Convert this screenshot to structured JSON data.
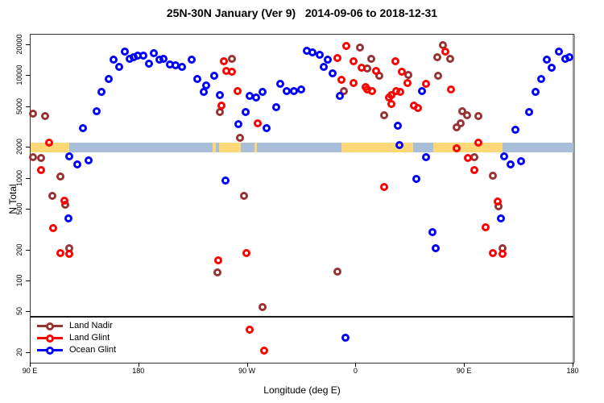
{
  "title": "25N-30N January (Ver 9)   2014-09-06 to 2018-12-31",
  "chart_data": {
    "type": "scatter",
    "title": "25N-30N January (Ver 9)   2014-09-06 to 2018-12-31",
    "xlabel": "Longitude (deg E)",
    "ylabel": "N Total",
    "x_axis": {
      "min": 90,
      "max": 540,
      "ticks": [
        {
          "value": 90,
          "label": "90 E"
        },
        {
          "value": 180,
          "label": "180"
        },
        {
          "value": 270,
          "label": "90 W"
        },
        {
          "value": 360,
          "label": "0"
        },
        {
          "value": 450,
          "label": "90 E"
        },
        {
          "value": 540,
          "label": "180"
        }
      ]
    },
    "y_axis": {
      "scale": "log",
      "min": 20,
      "max": 20000,
      "ticks": [
        20,
        50,
        100,
        200,
        500,
        1000,
        2000,
        5000,
        10000,
        20000
      ],
      "tick_labels": [
        "20",
        "50",
        "100",
        "200",
        "500",
        "1000",
        "2000",
        "5000",
        "10000",
        "20000"
      ]
    },
    "reference_line_n": 46,
    "land_ocean_band": {
      "center_n": 2000,
      "land_color": "#FFD878",
      "ocean_color": "#A9BED8",
      "segments": [
        {
          "surface": "land",
          "from": 90,
          "to": 122
        },
        {
          "surface": "ocean",
          "from": 122,
          "to": 241
        },
        {
          "surface": "land",
          "from": 241,
          "to": 243.5
        },
        {
          "surface": "ocean",
          "from": 243.5,
          "to": 246.5
        },
        {
          "surface": "land",
          "from": 246.5,
          "to": 264
        },
        {
          "surface": "ocean",
          "from": 264,
          "to": 275.5
        },
        {
          "surface": "land",
          "from": 275.5,
          "to": 277.5
        },
        {
          "surface": "ocean",
          "from": 277.5,
          "to": 347.5
        },
        {
          "surface": "land",
          "from": 347.5,
          "to": 407
        },
        {
          "surface": "ocean",
          "from": 407,
          "to": 424
        },
        {
          "surface": "land",
          "from": 424,
          "to": 481
        },
        {
          "surface": "ocean",
          "from": 481,
          "to": 540
        }
      ]
    },
    "legend": {
      "items": [
        {
          "label": "Land Nadir",
          "color": "#993333"
        },
        {
          "label": "Land Glint",
          "color": "#FF0000"
        },
        {
          "label": "Ocean Glint",
          "color": "#0000FF"
        }
      ]
    },
    "series": [
      {
        "name": "Land Nadir",
        "color": "#993333",
        "points": [
          [
            92,
            4310
          ],
          [
            102,
            4070
          ],
          [
            92,
            1620
          ],
          [
            98.7,
            1590
          ],
          [
            114.7,
            1050
          ],
          [
            108,
            680
          ],
          [
            118.7,
            557
          ],
          [
            122.1,
            210
          ],
          [
            247.1,
            4460
          ],
          [
            257.2,
            14730
          ],
          [
            263.9,
            2500
          ],
          [
            267.2,
            680
          ],
          [
            245.1,
            122
          ],
          [
            282.6,
            56
          ],
          [
            344.1,
            124
          ],
          [
            362.8,
            18980
          ],
          [
            372.2,
            14730
          ],
          [
            368.8,
            11820
          ],
          [
            349.4,
            7140
          ],
          [
            378.9,
            10070
          ],
          [
            382.9,
            4160
          ],
          [
            402.9,
            10260
          ],
          [
            431.7,
            19900
          ],
          [
            427,
            15280
          ],
          [
            437.7,
            14730
          ],
          [
            427.7,
            10070
          ],
          [
            447.7,
            4530
          ],
          [
            451.7,
            4160
          ],
          [
            461,
            4070
          ],
          [
            446.3,
            3470
          ],
          [
            443,
            3170
          ],
          [
            457.7,
            1620
          ],
          [
            473.1,
            1070
          ],
          [
            477.8,
            538
          ],
          [
            481.1,
            210
          ]
        ]
      },
      {
        "name": "Land Glint",
        "color": "#FF0000",
        "points": [
          [
            105.4,
            2240
          ],
          [
            98.7,
            1210
          ],
          [
            118.1,
            610
          ],
          [
            108.7,
            330
          ],
          [
            114.7,
            188
          ],
          [
            122.1,
            185
          ],
          [
            250.5,
            13960
          ],
          [
            252.5,
            11220
          ],
          [
            257.2,
            11030
          ],
          [
            261.8,
            7140
          ],
          [
            248.5,
            5160
          ],
          [
            278.6,
            3470
          ],
          [
            269.2,
            188
          ],
          [
            245.8,
            160
          ],
          [
            271.9,
            34
          ],
          [
            283.9,
            21
          ],
          [
            351.5,
            19680
          ],
          [
            344.1,
            15000
          ],
          [
            357.5,
            13960
          ],
          [
            364.2,
            12080
          ],
          [
            347.4,
            9200
          ],
          [
            357.5,
            8570
          ],
          [
            367.5,
            7830
          ],
          [
            368.8,
            7410
          ],
          [
            372.8,
            7140
          ],
          [
            376.2,
            11220
          ],
          [
            382.9,
            830
          ],
          [
            386.9,
            6180
          ],
          [
            388.9,
            6530
          ],
          [
            388.9,
            5350
          ],
          [
            392.2,
            13960
          ],
          [
            392.9,
            7140
          ],
          [
            396.2,
            7010
          ],
          [
            397.6,
            11030
          ],
          [
            402.2,
            8570
          ],
          [
            407.6,
            5160
          ],
          [
            411,
            4880
          ],
          [
            417.7,
            8410
          ],
          [
            433.7,
            17330
          ],
          [
            438.3,
            7410
          ],
          [
            443,
            1980
          ],
          [
            452.4,
            1590
          ],
          [
            457.7,
            1210
          ],
          [
            461,
            2240
          ],
          [
            467.1,
            335
          ],
          [
            473.1,
            188
          ],
          [
            477.1,
            600
          ],
          [
            481.1,
            185
          ]
        ]
      },
      {
        "name": "Ocean Glint",
        "color": "#0000FF",
        "points": [
          [
            133.5,
            3110
          ],
          [
            144.8,
            4550
          ],
          [
            148.8,
            7010
          ],
          [
            154.9,
            9370
          ],
          [
            158.9,
            14460
          ],
          [
            163.6,
            12290
          ],
          [
            168.2,
            17330
          ],
          [
            172.2,
            14730
          ],
          [
            175.6,
            15280
          ],
          [
            178.9,
            15850
          ],
          [
            183.6,
            15850
          ],
          [
            188.3,
            13220
          ],
          [
            192.3,
            16700
          ],
          [
            197,
            14460
          ],
          [
            200.3,
            14730
          ],
          [
            205.7,
            12980
          ],
          [
            210.4,
            12750
          ],
          [
            215.7,
            12290
          ],
          [
            223.7,
            14460
          ],
          [
            228.4,
            9370
          ],
          [
            233.8,
            7010
          ],
          [
            235.8,
            8100
          ],
          [
            242.5,
            10070
          ],
          [
            247.1,
            6530
          ],
          [
            262.5,
            3400
          ],
          [
            268.5,
            4460
          ],
          [
            271.9,
            6410
          ],
          [
            277.2,
            6180
          ],
          [
            282.6,
            7010
          ],
          [
            285.9,
            3110
          ],
          [
            293.9,
            4980
          ],
          [
            297.3,
            8410
          ],
          [
            302.6,
            7140
          ],
          [
            308.6,
            7140
          ],
          [
            314,
            7410
          ],
          [
            318.7,
            17650
          ],
          [
            324,
            17020
          ],
          [
            329.4,
            16140
          ],
          [
            336.1,
            14460
          ],
          [
            332.7,
            12290
          ],
          [
            340.7,
            10640
          ],
          [
            346.1,
            6410
          ],
          [
            394.2,
            3280
          ],
          [
            414.3,
            7140
          ],
          [
            508.6,
            7010
          ],
          [
            513.3,
            9370
          ],
          [
            517.9,
            14460
          ],
          [
            521.9,
            12080
          ],
          [
            528,
            17330
          ],
          [
            533.3,
            14730
          ],
          [
            536.6,
            15280
          ],
          [
            503.2,
            4460
          ],
          [
            491.8,
            3000
          ],
          [
            122.1,
            1650
          ],
          [
            128.8,
            1380
          ],
          [
            138.1,
            1510
          ],
          [
            121.4,
            410
          ],
          [
            251.8,
            960
          ],
          [
            350.8,
            28
          ],
          [
            395.6,
            2130
          ],
          [
            409.6,
            995
          ],
          [
            417.7,
            1620
          ],
          [
            423,
            301
          ],
          [
            425.7,
            210
          ],
          [
            479.8,
            410
          ],
          [
            482.5,
            1650
          ],
          [
            487.8,
            1380
          ],
          [
            496.5,
            1480
          ]
        ]
      }
    ]
  }
}
